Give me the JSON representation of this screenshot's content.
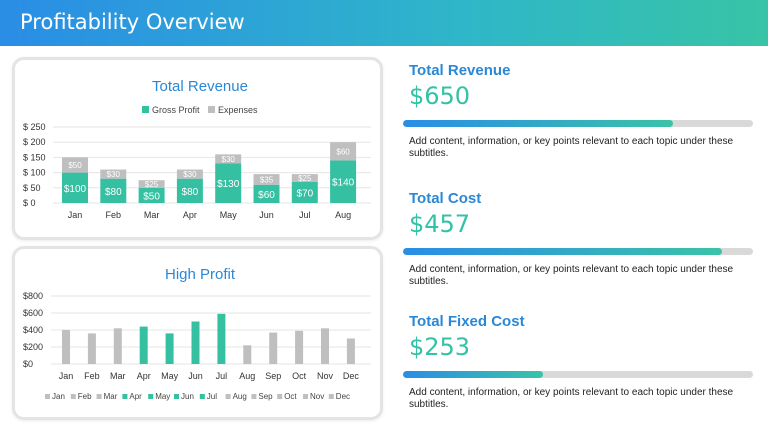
{
  "header": {
    "title": "Profitability Overview"
  },
  "colors": {
    "gross_profit": "#35c0a2",
    "expenses": "#bfbfbf",
    "high_profit": "#35c0a2",
    "title_blue": "#2a88d6"
  },
  "chart_data": [
    {
      "type": "bar",
      "stacked": true,
      "title": "Total Revenue",
      "categories": [
        "Jan",
        "Feb",
        "Mar",
        "Apr",
        "May",
        "Jun",
        "Jul",
        "Aug"
      ],
      "series": [
        {
          "name": "Gross Profit",
          "values": [
            100,
            80,
            50,
            80,
            130,
            60,
            70,
            140
          ],
          "labels": [
            "$100",
            "$80",
            "$50",
            "$80",
            "$130",
            "$60",
            "$70",
            "$140"
          ]
        },
        {
          "name": "Expenses",
          "values": [
            50,
            30,
            25,
            30,
            30,
            35,
            25,
            60
          ],
          "labels": [
            "$50",
            "$30",
            "$25",
            "$30",
            "$30",
            "$35",
            "$25",
            "$60"
          ]
        }
      ],
      "yticks": [
        "$ 250",
        "$ 200",
        "$ 150",
        "$ 100",
        "$ 50",
        "$ 0"
      ],
      "ylim": [
        0,
        250
      ],
      "legend": "top",
      "grid": true
    },
    {
      "type": "bar",
      "title": "High Profit",
      "categories": [
        "Jan",
        "Feb",
        "Mar",
        "Apr",
        "May",
        "Jun",
        "Jul",
        "Aug",
        "Sep",
        "Oct",
        "Nov",
        "Dec"
      ],
      "values": [
        400,
        360,
        420,
        440,
        360,
        500,
        590,
        220,
        370,
        390,
        420,
        300
      ],
      "highlighted": [
        "Apr",
        "May",
        "Jun",
        "Jul"
      ],
      "yticks": [
        "$800",
        "$600",
        "$400",
        "$200",
        "$0"
      ],
      "ylim": [
        0,
        800
      ],
      "legend": "bottom",
      "grid": true
    }
  ],
  "kpis": [
    {
      "title": "Total Revenue",
      "value": "$650",
      "progress": 0.77,
      "description": "Add content, information, or key points relevant to each topic under these subtitles."
    },
    {
      "title": "Total Cost",
      "value": "$457",
      "progress": 0.91,
      "description": "Add content, information, or key points relevant to each topic under these subtitles."
    },
    {
      "title": "Total Fixed Cost",
      "value": "$253",
      "progress": 0.4,
      "description": "Add content, information, or key points relevant to each topic under these subtitles."
    }
  ]
}
